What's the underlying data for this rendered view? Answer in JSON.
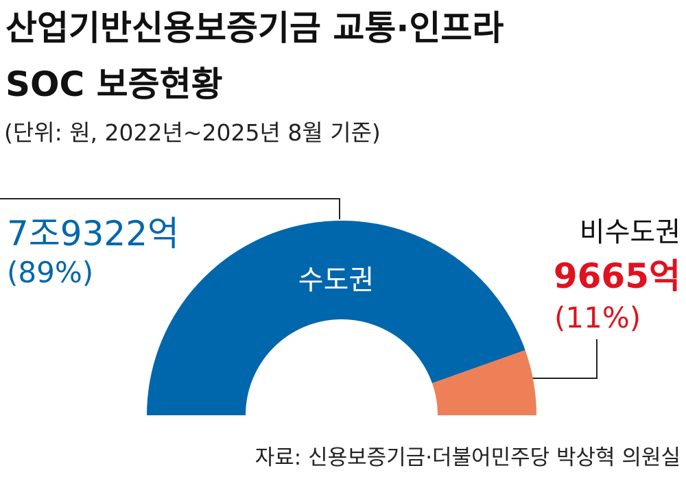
{
  "chart_data": {
    "type": "pie",
    "half": true,
    "title_lines": [
      "산업기반신용보증기금 교통·인프라",
      "SOC 보증현황"
    ],
    "subtitle": "(단위: 원, 2022년~2025년 8월 기준)",
    "source": "자료: 신용보증기금·더불어민주당 박상혁 의원실",
    "categories": [
      "수도권",
      "비수도권"
    ],
    "values": [
      7932200000000,
      966500000000
    ],
    "value_labels": [
      "7조9322억",
      "9665억"
    ],
    "percent_labels": [
      "(89%)",
      "(11%)"
    ],
    "colors": [
      "#0067ac",
      "#ee8058"
    ],
    "label_colors": [
      "#0067ac",
      "#e0121f"
    ]
  }
}
